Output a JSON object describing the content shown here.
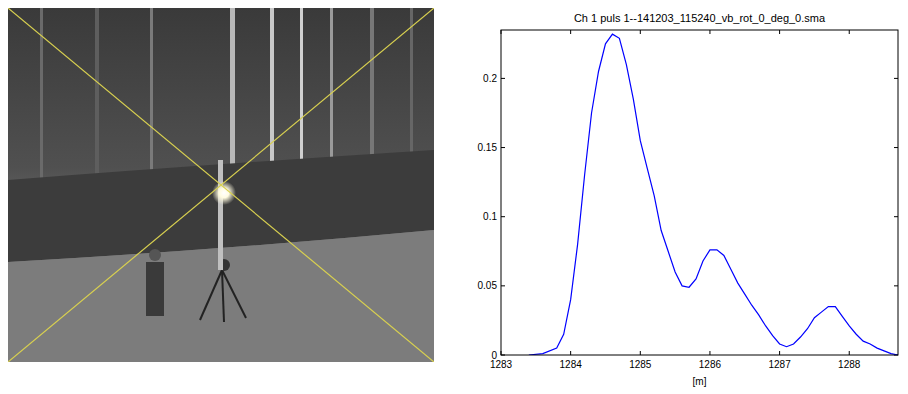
{
  "chart_data": {
    "type": "line",
    "title": "Ch 1 puls 1--141203_115240_vb_rot_0_deg_0.sma",
    "x_label": "[m]",
    "color": "#0000ff",
    "xlim": [
      1283,
      1288.7
    ],
    "ylim": [
      0,
      0.235
    ],
    "xticks": [
      1283,
      1284,
      1285,
      1286,
      1287,
      1288
    ],
    "yticks": [
      0,
      0.05,
      0.1,
      0.15,
      0.2
    ],
    "x": [
      1283.4,
      1283.6,
      1283.8,
      1283.9,
      1284.0,
      1284.1,
      1284.2,
      1284.3,
      1284.4,
      1284.5,
      1284.6,
      1284.7,
      1284.8,
      1284.9,
      1285.0,
      1285.1,
      1285.2,
      1285.3,
      1285.4,
      1285.5,
      1285.6,
      1285.7,
      1285.8,
      1285.9,
      1286.0,
      1286.1,
      1286.2,
      1286.3,
      1286.4,
      1286.5,
      1286.6,
      1286.7,
      1286.8,
      1286.9,
      1287.0,
      1287.1,
      1287.2,
      1287.3,
      1287.4,
      1287.5,
      1287.6,
      1287.7,
      1287.8,
      1287.9,
      1288.0,
      1288.1,
      1288.2,
      1288.3,
      1288.4,
      1288.5,
      1288.6,
      1288.7
    ],
    "values": [
      0,
      0.001,
      0.005,
      0.015,
      0.04,
      0.08,
      0.13,
      0.175,
      0.205,
      0.225,
      0.232,
      0.229,
      0.21,
      0.185,
      0.155,
      0.135,
      0.115,
      0.09,
      0.075,
      0.06,
      0.05,
      0.049,
      0.055,
      0.068,
      0.076,
      0.076,
      0.072,
      0.062,
      0.052,
      0.044,
      0.036,
      0.029,
      0.021,
      0.014,
      0.008,
      0.006,
      0.008,
      0.013,
      0.019,
      0.027,
      0.031,
      0.035,
      0.035,
      0.028,
      0.021,
      0.015,
      0.01,
      0.008,
      0.005,
      0.003,
      0.001,
      0
    ]
  }
}
